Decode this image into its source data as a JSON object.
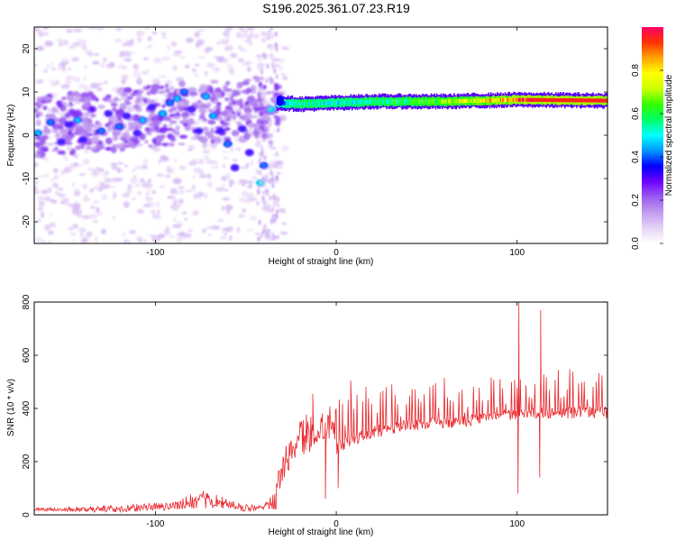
{
  "title": "S196.2025.361.07.23.R19",
  "chart_data": [
    {
      "type": "heatmap",
      "xlabel": "Height of straight line (km)",
      "ylabel": "Frequency (Hz)",
      "xlim": [
        -167,
        150
      ],
      "ylim": [
        -25,
        25
      ],
      "x_ticks": [
        -100,
        0,
        100
      ],
      "y_ticks": [
        -20,
        -10,
        0,
        10,
        20
      ],
      "colorbar": {
        "label": "Normalized spectral amplitude",
        "range": [
          0,
          1
        ],
        "ticks": [
          "0.0",
          "0.2",
          "0.4",
          "0.6",
          "0.8"
        ],
        "tick_values": [
          0,
          0.2,
          0.4,
          0.6,
          0.8
        ],
        "colors": [
          "#ffffff",
          "#e6d4f6",
          "#c29cf0",
          "#9a5cf0",
          "#6f00ff",
          "#0000ff",
          "#0099ff",
          "#00ffff",
          "#00ff66",
          "#33ff00",
          "#ccff00",
          "#ffff00",
          "#ffa500",
          "#ff3300",
          "#ff0066"
        ]
      },
      "strong_line": {
        "x_start": -33,
        "x_end": 150,
        "frequency": [
          [
            -33,
            7.5
          ],
          [
            -20,
            7.2
          ],
          [
            0,
            7.5
          ],
          [
            20,
            7.8
          ],
          [
            60,
            7.8
          ],
          [
            100,
            8.2
          ],
          [
            150,
            8.0
          ]
        ],
        "amplitude": [
          [
            -33,
            0.35
          ],
          [
            -20,
            0.55
          ],
          [
            0,
            0.5
          ],
          [
            40,
            0.6
          ],
          [
            80,
            0.75
          ],
          [
            110,
            0.95
          ],
          [
            150,
            0.95
          ]
        ]
      },
      "noise_blobs": [
        {
          "x": -165,
          "f": 0.5,
          "a": 0.4
        },
        {
          "x": -158,
          "f": 3.0,
          "a": 0.35
        },
        {
          "x": -152,
          "f": -1.5,
          "a": 0.3
        },
        {
          "x": -148,
          "f": 2.5,
          "a": 0.3
        },
        {
          "x": -143,
          "f": 3.5,
          "a": 0.4
        },
        {
          "x": -140,
          "f": -1.0,
          "a": 0.3
        },
        {
          "x": -135,
          "f": 6.0,
          "a": 0.25
        },
        {
          "x": -130,
          "f": 1.0,
          "a": 0.35
        },
        {
          "x": -126,
          "f": 5.0,
          "a": 0.3
        },
        {
          "x": -120,
          "f": 2.0,
          "a": 0.35
        },
        {
          "x": -116,
          "f": 4.5,
          "a": 0.3
        },
        {
          "x": -110,
          "f": 0.5,
          "a": 0.3
        },
        {
          "x": -107,
          "f": 3.5,
          "a": 0.4
        },
        {
          "x": -102,
          "f": 6.5,
          "a": 0.3
        },
        {
          "x": -96,
          "f": 5.0,
          "a": 0.4
        },
        {
          "x": -92,
          "f": 7.5,
          "a": 0.35
        },
        {
          "x": -88,
          "f": 8.5,
          "a": 0.4
        },
        {
          "x": -84,
          "f": 10.0,
          "a": 0.35
        },
        {
          "x": -80,
          "f": 6.0,
          "a": 0.3
        },
        {
          "x": -76,
          "f": 1.0,
          "a": 0.3
        },
        {
          "x": -72,
          "f": 9.0,
          "a": 0.4
        },
        {
          "x": -68,
          "f": 4.5,
          "a": 0.4
        },
        {
          "x": -64,
          "f": 1.0,
          "a": 0.3
        },
        {
          "x": -60,
          "f": -2.0,
          "a": 0.35
        },
        {
          "x": -56,
          "f": -7.5,
          "a": 0.3
        },
        {
          "x": -52,
          "f": 1.5,
          "a": 0.3
        },
        {
          "x": -48,
          "f": -4.0,
          "a": 0.3
        },
        {
          "x": -42,
          "f": -11.0,
          "a": 0.45
        },
        {
          "x": -40,
          "f": -7.0,
          "a": 0.35
        },
        {
          "x": -36,
          "f": 6.0,
          "a": 0.45
        },
        {
          "x": -30,
          "f": 8.0,
          "a": 0.3
        }
      ]
    },
    {
      "type": "line",
      "xlabel": "Height of straight line (km)",
      "ylabel": "SNR (10 * v/v)",
      "xlim": [
        -167,
        150
      ],
      "ylim": [
        0,
        800
      ],
      "x_ticks": [
        -100,
        0,
        100
      ],
      "y_ticks": [
        0,
        200,
        400,
        600,
        800
      ],
      "color": "#e8272c",
      "baseline_trend": [
        [
          -167,
          20
        ],
        [
          -120,
          22
        ],
        [
          -90,
          35
        ],
        [
          -75,
          60
        ],
        [
          -62,
          45
        ],
        [
          -50,
          25
        ],
        [
          -40,
          30
        ],
        [
          -33,
          60
        ],
        [
          -25,
          140
        ],
        [
          -15,
          180
        ],
        [
          -5,
          230
        ],
        [
          5,
          270
        ],
        [
          15,
          300
        ],
        [
          25,
          320
        ],
        [
          40,
          340
        ],
        [
          60,
          345
        ],
        [
          80,
          360
        ],
        [
          100,
          380
        ],
        [
          120,
          385
        ],
        [
          150,
          385
        ]
      ],
      "peak_amplitude_trend": [
        [
          -167,
          10
        ],
        [
          -90,
          30
        ],
        [
          -75,
          60
        ],
        [
          -60,
          30
        ],
        [
          -40,
          15
        ],
        [
          -33,
          80
        ],
        [
          -20,
          180
        ],
        [
          0,
          150
        ],
        [
          20,
          160
        ],
        [
          50,
          150
        ],
        [
          80,
          140
        ],
        [
          100,
          130
        ],
        [
          120,
          150
        ],
        [
          150,
          160
        ]
      ],
      "spikes": [
        {
          "x": -13,
          "y": 455
        },
        {
          "x": 8,
          "y": 505
        },
        {
          "x": 1,
          "y": 100
        },
        {
          "x": -6,
          "y": 60
        },
        {
          "x": 101,
          "y": 800
        },
        {
          "x": 100.5,
          "y": 80
        },
        {
          "x": 113,
          "y": 770
        },
        {
          "x": 112.5,
          "y": 140
        }
      ]
    }
  ]
}
